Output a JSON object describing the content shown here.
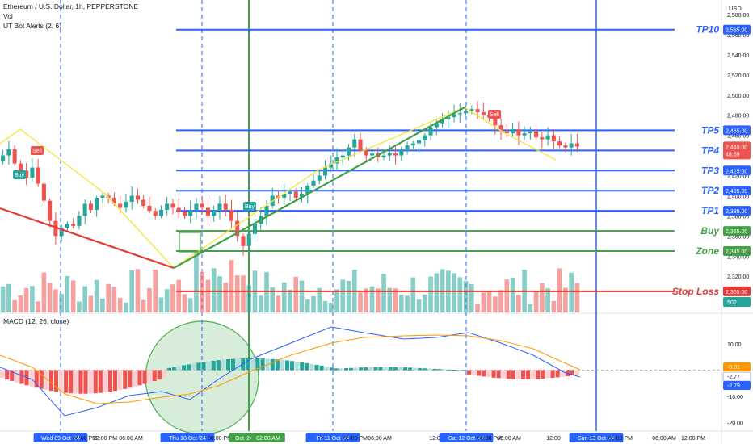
{
  "header": {
    "title": "Ethereum / U.S. Dollar, 1h, PEPPERSTONE",
    "vol": "Vol",
    "indicator": "UT Bot Alerts (2, 6)",
    "currency": "USD"
  },
  "macd_header": {
    "title": "MACD (12, 26, close)"
  },
  "chart_data": [
    {
      "type": "candlestick",
      "title": "Ethereum / U.S. Dollar, 1h, PEPPERSTONE",
      "ylim": [
        2280,
        2580
      ],
      "y_ticks": [
        "2,580.00",
        "2,560.00",
        "2,540.00",
        "2,520.00",
        "2,500.00",
        "2,480.00",
        "2,460.00",
        "2,440.00",
        "2,420.00",
        "2,400.00",
        "2,380.00",
        "2,360.00",
        "2,340.00",
        "2,320.00"
      ],
      "last_price": "2,449.00",
      "countdown": "48:59",
      "prev_tag": "2,445.00",
      "levels": [
        {
          "label": "TP10",
          "value": 2565,
          "tag": "2,565.00",
          "color": "#2962ff"
        },
        {
          "label": "TP5",
          "value": 2465,
          "tag": "2,465.00",
          "color": "#2962ff"
        },
        {
          "label": "TP4",
          "value": 2445,
          "tag": "2,445.00",
          "color": "#2962ff"
        },
        {
          "label": "TP3",
          "value": 2425,
          "tag": "2,425.00",
          "color": "#2962ff"
        },
        {
          "label": "TP2",
          "value": 2405,
          "tag": "2,405.00",
          "color": "#2962ff"
        },
        {
          "label": "TP1",
          "value": 2385,
          "tag": "2,385.00",
          "color": "#2962ff"
        },
        {
          "label": "Buy",
          "value": 2365,
          "tag": "2,365.00",
          "color": "#43a047"
        },
        {
          "label": "Zone",
          "value": 2345,
          "tag": "2,345.00",
          "color": "#43a047"
        },
        {
          "label": "Stop Loss",
          "value": 2305,
          "tag": "2,305.00",
          "color": "#e53935"
        }
      ],
      "signals": [
        {
          "label": "Sell",
          "type": "sell"
        },
        {
          "label": "Buy",
          "type": "buy"
        },
        {
          "label": "Buy",
          "type": "buy"
        },
        {
          "label": "Sell",
          "type": "sell"
        }
      ],
      "volume_tag": "502",
      "closes": [
        2440,
        2446,
        2432,
        2425,
        2418,
        2428,
        2412,
        2395,
        2375,
        2360,
        2368,
        2372,
        2370,
        2380,
        2392,
        2386,
        2398,
        2400,
        2398,
        2392,
        2388,
        2394,
        2400,
        2396,
        2390,
        2385,
        2380,
        2386,
        2392,
        2388,
        2384,
        2380,
        2386,
        2392,
        2388,
        2380,
        2385,
        2392,
        2386,
        2375,
        2360,
        2350,
        2362,
        2372,
        2380,
        2390,
        2400,
        2398,
        2402,
        2404,
        2398,
        2402,
        2410,
        2415,
        2420,
        2428,
        2432,
        2438,
        2440,
        2448,
        2456,
        2445,
        2440,
        2442,
        2438,
        2440,
        2442,
        2440,
        2446,
        2450,
        2452,
        2455,
        2460,
        2468,
        2472,
        2476,
        2478,
        2481,
        2482,
        2484,
        2486,
        2483,
        2480,
        2478,
        2470,
        2464,
        2462,
        2466,
        2460,
        2462,
        2464,
        2458,
        2456,
        2460,
        2454,
        2450,
        2448,
        2452,
        2449
      ]
    },
    {
      "type": "line",
      "title": "MACD (12, 26, close)",
      "ylim": [
        -22,
        18
      ],
      "y_ticks": [
        "10.00",
        "-10.00",
        "-20.00"
      ],
      "tags": [
        {
          "value": "-0.01",
          "color": "#ff9800"
        },
        {
          "value": "-2.77",
          "color": "#ffffff"
        },
        {
          "value": "-2.79",
          "color": "#2962ff"
        }
      ]
    }
  ],
  "x_axis": {
    "labels": [
      "Wed 09 Oct '24",
      "06:00 PM",
      "12:00 PM",
      "06:00 AM",
      "Thu 10 Oct '24",
      "06:00 PM",
      "Oct '24",
      "02:00 AM",
      "12",
      "Fri 11 Oct '24",
      "06:00 PM",
      "06:00 AM",
      "12:00",
      "Sat 12 Oct '24",
      "06:00 PM",
      "06:00 AM",
      "12:00",
      "Sun 13 Oct '24",
      "06:00 PM",
      "06:00 AM",
      "12:00 PM"
    ]
  },
  "colors": {
    "up": "#26a69a",
    "down": "#ef5350",
    "blue": "#2962ff",
    "green": "#43a047",
    "red": "#e53935",
    "yellow": "#f5e642",
    "orange": "#ff9800"
  }
}
